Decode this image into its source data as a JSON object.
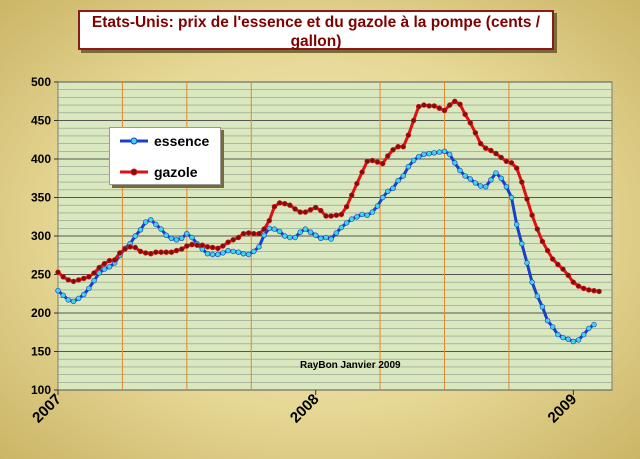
{
  "chart_data": {
    "type": "line",
    "title": "Etats-Unis: prix de l'essence et du gazole à la pompe (cents / gallon)",
    "annotation": "RayBon Janvier  2009",
    "xlabel": "",
    "ylabel": "",
    "x_ticks": [
      "2007",
      "2008",
      "2009"
    ],
    "x_range": [
      2007.0,
      2009.15
    ],
    "ylim": [
      100,
      500
    ],
    "y_ticks": [
      100,
      150,
      200,
      250,
      300,
      350,
      400,
      450,
      500
    ],
    "grid": true,
    "legend": "top-left",
    "series": [
      {
        "name": "essence",
        "color": "#1a3fcc",
        "marker_color": "#3fd6e6",
        "points": [
          [
            2007.0,
            229
          ],
          [
            2007.02,
            223
          ],
          [
            2007.04,
            217
          ],
          [
            2007.06,
            215
          ],
          [
            2007.08,
            219
          ],
          [
            2007.1,
            224
          ],
          [
            2007.12,
            232
          ],
          [
            2007.14,
            242
          ],
          [
            2007.16,
            252
          ],
          [
            2007.18,
            257
          ],
          [
            2007.2,
            260
          ],
          [
            2007.22,
            265
          ],
          [
            2007.24,
            275
          ],
          [
            2007.26,
            284
          ],
          [
            2007.28,
            290
          ],
          [
            2007.3,
            300
          ],
          [
            2007.32,
            308
          ],
          [
            2007.34,
            318
          ],
          [
            2007.36,
            321
          ],
          [
            2007.38,
            315
          ],
          [
            2007.4,
            309
          ],
          [
            2007.42,
            301
          ],
          [
            2007.44,
            297
          ],
          [
            2007.46,
            295
          ],
          [
            2007.48,
            297
          ],
          [
            2007.5,
            303
          ],
          [
            2007.52,
            298
          ],
          [
            2007.54,
            290
          ],
          [
            2007.56,
            283
          ],
          [
            2007.58,
            277
          ],
          [
            2007.6,
            276
          ],
          [
            2007.62,
            276
          ],
          [
            2007.64,
            278
          ],
          [
            2007.66,
            281
          ],
          [
            2007.68,
            280
          ],
          [
            2007.7,
            279
          ],
          [
            2007.72,
            277
          ],
          [
            2007.74,
            276
          ],
          [
            2007.76,
            280
          ],
          [
            2007.78,
            286
          ],
          [
            2007.8,
            301
          ],
          [
            2007.82,
            310
          ],
          [
            2007.84,
            309
          ],
          [
            2007.86,
            306
          ],
          [
            2007.88,
            300
          ],
          [
            2007.9,
            298
          ],
          [
            2007.92,
            298
          ],
          [
            2007.94,
            305
          ],
          [
            2007.96,
            309
          ],
          [
            2007.98,
            305
          ],
          [
            2008.0,
            301
          ],
          [
            2008.02,
            297
          ],
          [
            2008.04,
            298
          ],
          [
            2008.06,
            296
          ],
          [
            2008.08,
            304
          ],
          [
            2008.1,
            311
          ],
          [
            2008.12,
            317
          ],
          [
            2008.14,
            322
          ],
          [
            2008.16,
            325
          ],
          [
            2008.18,
            328
          ],
          [
            2008.2,
            327
          ],
          [
            2008.22,
            331
          ],
          [
            2008.24,
            339
          ],
          [
            2008.26,
            350
          ],
          [
            2008.28,
            358
          ],
          [
            2008.3,
            362
          ],
          [
            2008.32,
            372
          ],
          [
            2008.34,
            378
          ],
          [
            2008.36,
            390
          ],
          [
            2008.38,
            398
          ],
          [
            2008.4,
            403
          ],
          [
            2008.42,
            406
          ],
          [
            2008.44,
            407
          ],
          [
            2008.46,
            408
          ],
          [
            2008.48,
            409
          ],
          [
            2008.5,
            410
          ],
          [
            2008.52,
            406
          ],
          [
            2008.54,
            395
          ],
          [
            2008.56,
            385
          ],
          [
            2008.58,
            378
          ],
          [
            2008.6,
            374
          ],
          [
            2008.62,
            369
          ],
          [
            2008.64,
            365
          ],
          [
            2008.66,
            364
          ],
          [
            2008.68,
            373
          ],
          [
            2008.7,
            382
          ],
          [
            2008.72,
            375
          ],
          [
            2008.74,
            364
          ],
          [
            2008.76,
            350
          ],
          [
            2008.78,
            315
          ],
          [
            2008.8,
            290
          ],
          [
            2008.82,
            265
          ],
          [
            2008.84,
            240
          ],
          [
            2008.86,
            222
          ],
          [
            2008.88,
            208
          ],
          [
            2008.9,
            190
          ],
          [
            2008.92,
            182
          ],
          [
            2008.94,
            172
          ],
          [
            2008.96,
            168
          ],
          [
            2008.98,
            166
          ],
          [
            2009.0,
            163
          ],
          [
            2009.02,
            165
          ],
          [
            2009.04,
            172
          ],
          [
            2009.06,
            180
          ],
          [
            2009.08,
            185
          ]
        ]
      },
      {
        "name": "gazole",
        "color": "#e01010",
        "marker_color": "#7a1010",
        "points": [
          [
            2007.0,
            253
          ],
          [
            2007.02,
            247
          ],
          [
            2007.04,
            243
          ],
          [
            2007.06,
            241
          ],
          [
            2007.08,
            243
          ],
          [
            2007.1,
            245
          ],
          [
            2007.12,
            247
          ],
          [
            2007.14,
            252
          ],
          [
            2007.16,
            259
          ],
          [
            2007.18,
            264
          ],
          [
            2007.2,
            268
          ],
          [
            2007.22,
            269
          ],
          [
            2007.24,
            278
          ],
          [
            2007.26,
            283
          ],
          [
            2007.28,
            286
          ],
          [
            2007.3,
            285
          ],
          [
            2007.32,
            280
          ],
          [
            2007.34,
            278
          ],
          [
            2007.36,
            277
          ],
          [
            2007.38,
            279
          ],
          [
            2007.4,
            279
          ],
          [
            2007.42,
            279
          ],
          [
            2007.44,
            279
          ],
          [
            2007.46,
            281
          ],
          [
            2007.48,
            283
          ],
          [
            2007.5,
            287
          ],
          [
            2007.52,
            289
          ],
          [
            2007.54,
            288
          ],
          [
            2007.56,
            288
          ],
          [
            2007.58,
            286
          ],
          [
            2007.6,
            285
          ],
          [
            2007.62,
            284
          ],
          [
            2007.64,
            287
          ],
          [
            2007.66,
            292
          ],
          [
            2007.68,
            295
          ],
          [
            2007.7,
            298
          ],
          [
            2007.72,
            303
          ],
          [
            2007.74,
            304
          ],
          [
            2007.76,
            303
          ],
          [
            2007.78,
            303
          ],
          [
            2007.8,
            309
          ],
          [
            2007.82,
            320
          ],
          [
            2007.84,
            338
          ],
          [
            2007.86,
            343
          ],
          [
            2007.88,
            342
          ],
          [
            2007.9,
            340
          ],
          [
            2007.92,
            335
          ],
          [
            2007.94,
            331
          ],
          [
            2007.96,
            331
          ],
          [
            2007.98,
            334
          ],
          [
            2008.0,
            337
          ],
          [
            2008.02,
            333
          ],
          [
            2008.04,
            326
          ],
          [
            2008.06,
            326
          ],
          [
            2008.08,
            327
          ],
          [
            2008.1,
            328
          ],
          [
            2008.12,
            338
          ],
          [
            2008.14,
            353
          ],
          [
            2008.16,
            368
          ],
          [
            2008.18,
            383
          ],
          [
            2008.2,
            397
          ],
          [
            2008.22,
            398
          ],
          [
            2008.24,
            396
          ],
          [
            2008.26,
            394
          ],
          [
            2008.28,
            404
          ],
          [
            2008.3,
            412
          ],
          [
            2008.32,
            416
          ],
          [
            2008.34,
            416
          ],
          [
            2008.36,
            431
          ],
          [
            2008.38,
            450
          ],
          [
            2008.4,
            468
          ],
          [
            2008.42,
            470
          ],
          [
            2008.44,
            469
          ],
          [
            2008.46,
            469
          ],
          [
            2008.48,
            466
          ],
          [
            2008.5,
            463
          ],
          [
            2008.52,
            470
          ],
          [
            2008.54,
            475
          ],
          [
            2008.56,
            471
          ],
          [
            2008.58,
            458
          ],
          [
            2008.6,
            447
          ],
          [
            2008.62,
            434
          ],
          [
            2008.64,
            420
          ],
          [
            2008.66,
            414
          ],
          [
            2008.68,
            411
          ],
          [
            2008.7,
            407
          ],
          [
            2008.72,
            402
          ],
          [
            2008.74,
            397
          ],
          [
            2008.76,
            395
          ],
          [
            2008.78,
            388
          ],
          [
            2008.8,
            370
          ],
          [
            2008.82,
            348
          ],
          [
            2008.84,
            327
          ],
          [
            2008.86,
            309
          ],
          [
            2008.88,
            293
          ],
          [
            2008.9,
            281
          ],
          [
            2008.92,
            270
          ],
          [
            2008.94,
            263
          ],
          [
            2008.96,
            257
          ],
          [
            2008.98,
            249
          ],
          [
            2009.0,
            240
          ],
          [
            2009.02,
            235
          ],
          [
            2009.04,
            232
          ],
          [
            2009.06,
            230
          ],
          [
            2009.08,
            229
          ],
          [
            2009.1,
            228
          ]
        ]
      }
    ]
  }
}
